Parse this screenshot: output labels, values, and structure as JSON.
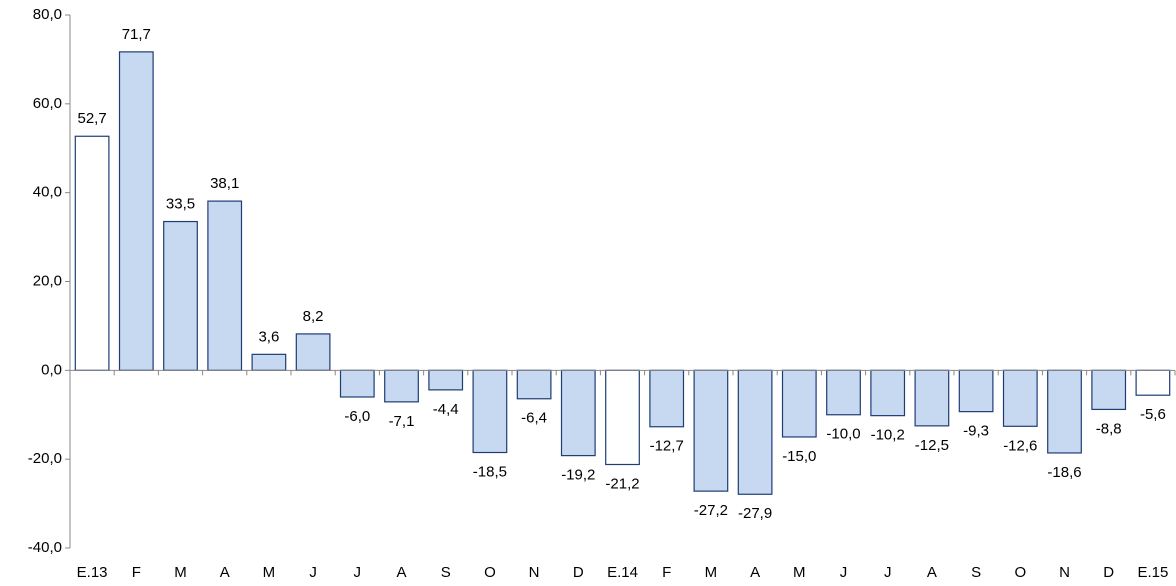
{
  "chart_data": {
    "type": "bar",
    "categories": [
      "E.13",
      "F",
      "M",
      "A",
      "M",
      "J",
      "J",
      "A",
      "S",
      "O",
      "N",
      "D",
      "E.14",
      "F",
      "M",
      "A",
      "M",
      "J",
      "J",
      "A",
      "S",
      "O",
      "N",
      "D",
      "E.15"
    ],
    "values": [
      52.7,
      71.7,
      33.5,
      38.1,
      3.6,
      8.2,
      -6.0,
      -7.1,
      -4.4,
      -18.5,
      -6.4,
      -19.2,
      -21.2,
      -12.7,
      -27.2,
      -27.9,
      -15.0,
      -10.0,
      -10.2,
      -12.5,
      -9.3,
      -12.6,
      -18.6,
      -8.8,
      -5.6
    ],
    "value_labels": [
      "52,7",
      "71,7",
      "33,5",
      "38,1",
      "3,6",
      "8,2",
      "-6,0",
      "-7,1",
      "-4,4",
      "-18,5",
      "-6,4",
      "-19,2",
      "-21,2",
      "-12,7",
      "-27,2",
      "-27,9",
      "-15,0",
      "-10,0",
      "-10,2",
      "-12,5",
      "-9,3",
      "-12,6",
      "-18,6",
      "-8,8",
      "-5,6"
    ],
    "colors": [
      "#ffffff",
      "#c6d9f1",
      "#c6d9f1",
      "#c6d9f1",
      "#c6d9f1",
      "#c6d9f1",
      "#c6d9f1",
      "#c6d9f1",
      "#c6d9f1",
      "#c6d9f1",
      "#c6d9f1",
      "#c6d9f1",
      "#ffffff",
      "#c6d9f1",
      "#c6d9f1",
      "#c6d9f1",
      "#c6d9f1",
      "#c6d9f1",
      "#c6d9f1",
      "#c6d9f1",
      "#c6d9f1",
      "#c6d9f1",
      "#c6d9f1",
      "#c6d9f1",
      "#ffffff"
    ],
    "edge_color": "#1f3c74",
    "ylim": [
      -40,
      80
    ],
    "yticks": [
      {
        "value": -40,
        "label": "-40,0"
      },
      {
        "value": -20,
        "label": "-20,0"
      },
      {
        "value": 0,
        "label": "0,0"
      },
      {
        "value": 20,
        "label": "20,0"
      },
      {
        "value": 40,
        "label": "40,0"
      },
      {
        "value": 60,
        "label": "60,0"
      },
      {
        "value": 80,
        "label": "80,0"
      }
    ],
    "grid": false
  }
}
